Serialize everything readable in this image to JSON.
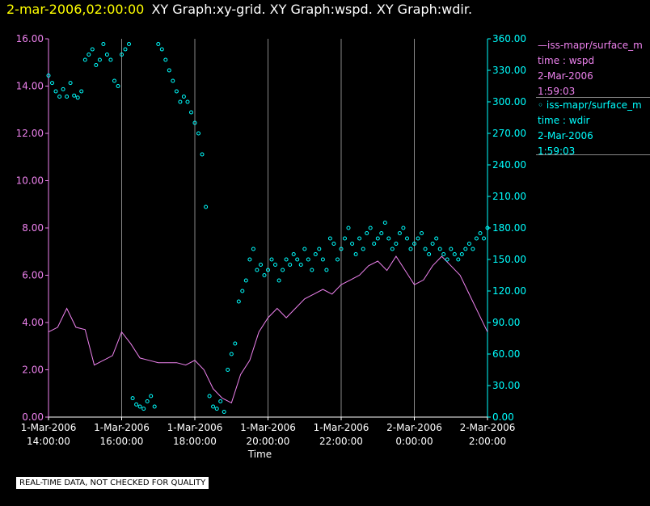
{
  "header": {
    "date": "2-mar-2006,02:00:00",
    "text": "XY Graph:xy-grid.  XY Graph:wspd.  XY Graph:wdir."
  },
  "legend": [
    {
      "line1": "—iss-mapr/surface_m",
      "line2": "time : wspd",
      "line3": "2-Mar-2006",
      "line4": "1:59:03"
    },
    {
      "line1": "◦ iss-mapr/surface_m",
      "line2": "time : wdir",
      "line3": "2-Mar-2006",
      "line4": "1:59:03"
    }
  ],
  "disclaimer": "REAL-TIME DATA, NOT CHECKED FOR QUALITY",
  "colors": {
    "wspd": "#ee82ee",
    "wdir": "#00ffff",
    "axis": "#ffffff",
    "grid": "#888888"
  },
  "chart_data": {
    "type": "line",
    "xlabel": "Time",
    "x_ticks": [
      {
        "l1": "1-Mar-2006",
        "l2": "14:00:00"
      },
      {
        "l1": "1-Mar-2006",
        "l2": "16:00:00"
      },
      {
        "l1": "1-Mar-2006",
        "l2": "18:00:00"
      },
      {
        "l1": "1-Mar-2006",
        "l2": "20:00:00"
      },
      {
        "l1": "1-Mar-2006",
        "l2": "22:00:00"
      },
      {
        "l1": "2-Mar-2006",
        "l2": "0:00:00"
      },
      {
        "l1": "2-Mar-2006",
        "l2": "2:00:00"
      }
    ],
    "x_range_hours": [
      14,
      26
    ],
    "y_left": {
      "label": "wspd",
      "range": [
        0,
        16
      ],
      "ticks": [
        "0.00",
        "2.00",
        "4.00",
        "6.00",
        "8.00",
        "10.00",
        "12.00",
        "14.00",
        "16.00"
      ]
    },
    "y_right": {
      "label": "wdir",
      "range": [
        0,
        360
      ],
      "ticks": [
        "0.00",
        "30.00",
        "60.00",
        "90.00",
        "120.00",
        "150.00",
        "180.00",
        "210.00",
        "240.00",
        "270.00",
        "300.00",
        "330.00",
        "360.00"
      ]
    },
    "series": [
      {
        "name": "wspd",
        "style": "line",
        "axis": "left",
        "x": [
          14.0,
          14.25,
          14.5,
          14.75,
          15.0,
          15.25,
          15.5,
          15.75,
          16.0,
          16.25,
          16.5,
          16.75,
          17.0,
          17.25,
          17.5,
          17.75,
          18.0,
          18.25,
          18.5,
          18.75,
          19.0,
          19.25,
          19.5,
          19.75,
          20.0,
          20.25,
          20.5,
          20.75,
          21.0,
          21.25,
          21.5,
          21.75,
          22.0,
          22.25,
          22.5,
          22.75,
          23.0,
          23.25,
          23.5,
          23.75,
          24.0,
          24.25,
          24.5,
          24.75,
          25.0,
          25.25,
          25.5,
          25.75,
          26.0
        ],
        "values": [
          3.6,
          3.8,
          4.6,
          3.8,
          3.7,
          2.2,
          2.4,
          2.6,
          3.6,
          3.1,
          2.5,
          2.4,
          2.3,
          2.3,
          2.3,
          2.2,
          2.4,
          2.0,
          1.2,
          0.8,
          0.6,
          1.8,
          2.4,
          3.6,
          4.2,
          4.6,
          4.2,
          4.6,
          5.0,
          5.2,
          5.4,
          5.2,
          5.6,
          5.8,
          6.0,
          6.4,
          6.6,
          6.2,
          6.8,
          6.2,
          5.6,
          5.8,
          6.4,
          6.8,
          6.4,
          6.0,
          5.2,
          4.4,
          3.6
        ]
      },
      {
        "name": "wdir",
        "style": "scatter",
        "axis": "right",
        "x": [
          14.0,
          14.1,
          14.2,
          14.3,
          14.4,
          14.5,
          14.6,
          14.7,
          14.8,
          14.9,
          15.0,
          15.1,
          15.2,
          15.3,
          15.4,
          15.5,
          15.6,
          15.7,
          15.8,
          15.9,
          16.0,
          16.1,
          16.2,
          16.3,
          16.4,
          16.5,
          16.6,
          16.7,
          16.8,
          16.9,
          17.0,
          17.1,
          17.2,
          17.3,
          17.4,
          17.5,
          17.6,
          17.7,
          17.8,
          17.9,
          18.0,
          18.1,
          18.2,
          18.3,
          18.4,
          18.5,
          18.6,
          18.7,
          18.8,
          18.9,
          19.0,
          19.1,
          19.2,
          19.3,
          19.4,
          19.5,
          19.6,
          19.7,
          19.8,
          19.9,
          20.0,
          20.1,
          20.2,
          20.3,
          20.4,
          20.5,
          20.6,
          20.7,
          20.8,
          20.9,
          21.0,
          21.1,
          21.2,
          21.3,
          21.4,
          21.5,
          21.6,
          21.7,
          21.8,
          21.9,
          22.0,
          22.1,
          22.2,
          22.3,
          22.4,
          22.5,
          22.6,
          22.7,
          22.8,
          22.9,
          23.0,
          23.1,
          23.2,
          23.3,
          23.4,
          23.5,
          23.6,
          23.7,
          23.8,
          23.9,
          24.0,
          24.1,
          24.2,
          24.3,
          24.4,
          24.5,
          24.6,
          24.7,
          24.8,
          24.9,
          25.0,
          25.1,
          25.2,
          25.3,
          25.4,
          25.5,
          25.6,
          25.7,
          25.8,
          25.9,
          26.0
        ],
        "values": [
          325,
          318,
          310,
          305,
          312,
          305,
          318,
          306,
          304,
          310,
          340,
          345,
          350,
          335,
          340,
          355,
          345,
          340,
          320,
          315,
          345,
          350,
          355,
          18,
          12,
          10,
          8,
          15,
          20,
          10,
          355,
          350,
          340,
          330,
          320,
          310,
          300,
          305,
          300,
          290,
          280,
          270,
          250,
          200,
          20,
          10,
          8,
          15,
          5,
          45,
          60,
          70,
          110,
          120,
          130,
          150,
          160,
          140,
          145,
          135,
          140,
          150,
          145,
          130,
          140,
          150,
          145,
          155,
          150,
          145,
          160,
          150,
          140,
          155,
          160,
          150,
          140,
          170,
          165,
          150,
          160,
          170,
          180,
          165,
          155,
          170,
          160,
          175,
          180,
          165,
          170,
          175,
          185,
          170,
          160,
          165,
          175,
          180,
          170,
          160,
          165,
          170,
          175,
          160,
          155,
          165,
          170,
          160,
          155,
          150,
          160,
          155,
          150,
          155,
          160,
          165,
          160,
          170,
          175,
          170,
          180
        ]
      }
    ]
  }
}
